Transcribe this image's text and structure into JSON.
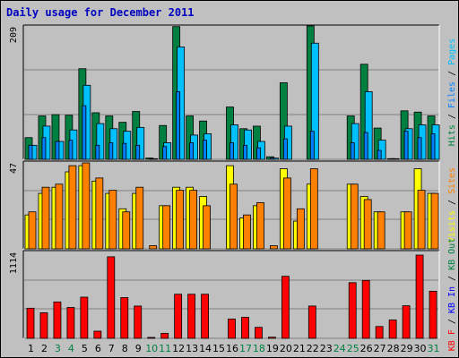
{
  "title": "Daily usage for December 2011",
  "colors": {
    "hits": "#008040",
    "files": "#0080ff",
    "pages": "#00c0ff",
    "visits": "#ffff00",
    "sites": "#ff8000",
    "kb_out": "#008040",
    "kb_in": "#0000ff",
    "kb_f": "#ff0000",
    "weekend": "#008040",
    "weekday": "#000000",
    "panel": "#c0c0c0"
  },
  "chart_data": {
    "type": "bar",
    "title": "Daily usage for December 2011",
    "categories": [
      "1",
      "2",
      "3",
      "4",
      "5",
      "6",
      "7",
      "8",
      "9",
      "10",
      "11",
      "12",
      "13",
      "14",
      "15",
      "16",
      "17",
      "18",
      "19",
      "20",
      "21",
      "22",
      "23",
      "24",
      "25",
      "26",
      "27",
      "28",
      "29",
      "30",
      "31"
    ],
    "weekend_days": [
      "3",
      "4",
      "10",
      "11",
      "17",
      "18",
      "24",
      "25",
      "31"
    ],
    "panels": [
      {
        "ymax": "209",
        "legend": [
          "Hits",
          "/",
          "Files",
          "/",
          "Pages"
        ],
        "series": [
          {
            "name": "Hits",
            "values": [
              34,
              68,
              70,
              69,
              142,
              73,
              68,
              58,
              75,
              2,
              53,
              208,
              68,
              60,
              0,
              82,
              48,
              52,
              4,
              120,
              0,
              209,
              0,
              0,
              68,
              149,
              49,
              1,
              76,
              74,
              68
            ]
          },
          {
            "name": "Files",
            "values": [
              22,
              34,
              28,
              30,
              84,
              22,
              26,
              25,
              22,
              1,
              20,
              106,
              26,
              30,
              0,
              26,
              22,
              18,
              2,
              32,
              0,
              44,
              0,
              0,
              26,
              42,
              14,
              1,
              44,
              34,
              40
            ]
          },
          {
            "name": "Pages",
            "values": [
              22,
              52,
              28,
              46,
              116,
              56,
              48,
              44,
              50,
              1,
              26,
              176,
              38,
              40,
              0,
              54,
              46,
              28,
              2,
              52,
              0,
              182,
              0,
              0,
              56,
              106,
              30,
              1,
              48,
              54,
              54
            ]
          }
        ]
      },
      {
        "ymax": "47",
        "legend": [
          "Visits",
          "/",
          "Sites"
        ],
        "series": [
          {
            "name": "Visits",
            "values": [
              11,
              18,
              20,
              25,
              27,
              22,
              18,
              13,
              18,
              0,
              14,
              20,
              20,
              17,
              0,
              27,
              10,
              14,
              0,
              26,
              9,
              21,
              0,
              0,
              21,
              17,
              12,
              0,
              12,
              26,
              18
            ]
          },
          {
            "name": "Sites",
            "values": [
              12,
              20,
              21,
              27,
              28,
              23,
              19,
              12,
              20,
              1,
              14,
              19,
              19,
              14,
              0,
              21,
              11,
              15,
              1,
              23,
              13,
              26,
              0,
              0,
              21,
              16,
              12,
              0,
              12,
              19,
              18
            ]
          }
        ]
      },
      {
        "ymax": "1114",
        "legend": [
          "KB F",
          "/",
          "KB In",
          "/",
          "KB Out"
        ],
        "series": [
          {
            "name": "KB F",
            "values": [
              403,
              342,
              487,
              413,
              551,
              96,
              1091,
              545,
              432,
              12,
              67,
              590,
              590,
              590,
              0,
              258,
              281,
              147,
              15,
              830,
              0,
              432,
              0,
              0,
              745,
              775,
              158,
              245,
              436,
              1114,
              630
            ]
          }
        ]
      }
    ]
  }
}
